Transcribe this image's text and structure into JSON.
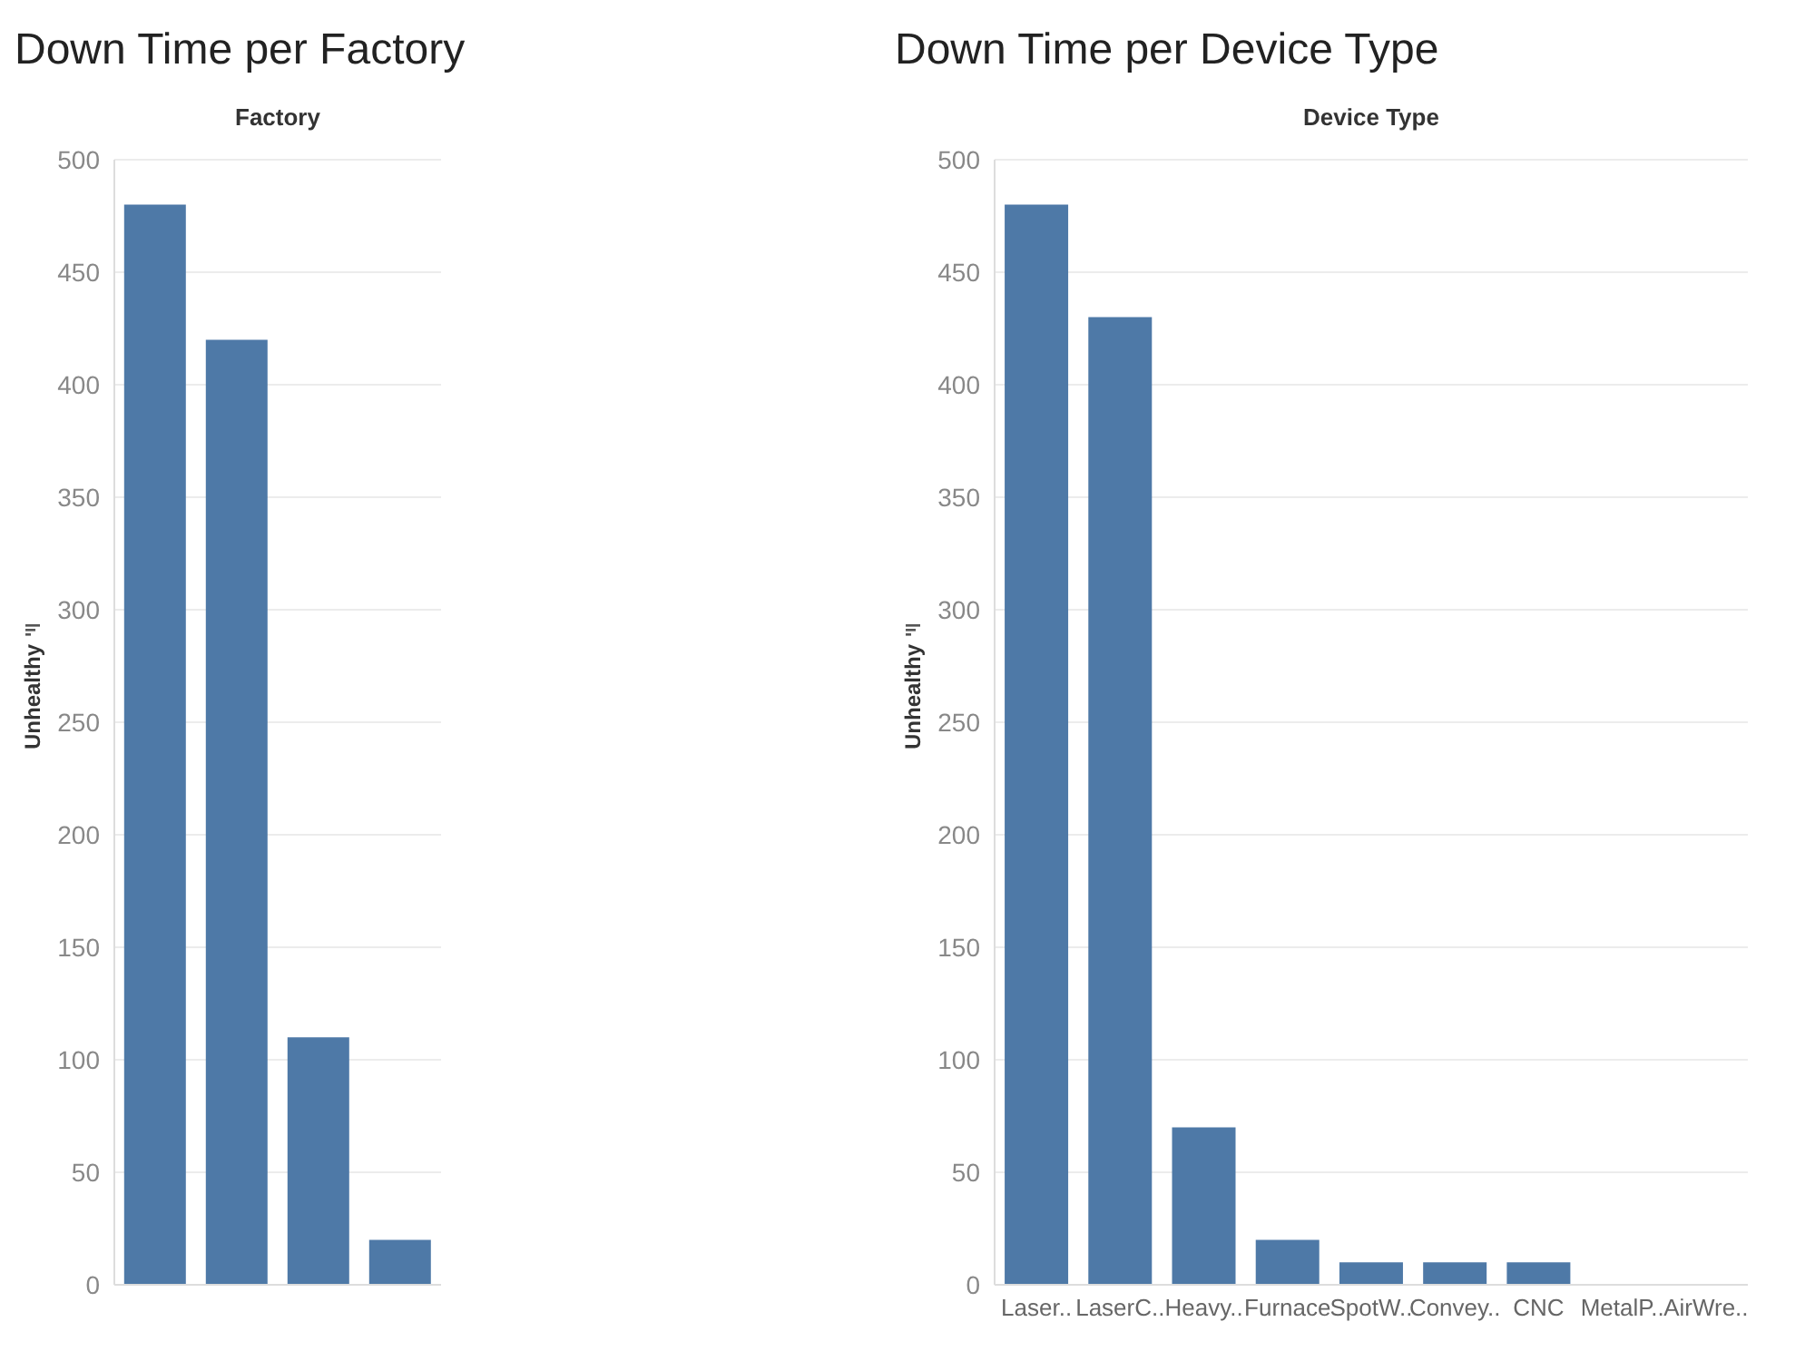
{
  "chart_data": [
    {
      "type": "bar",
      "title": "Down Time per Factory",
      "xlabel": "Factory",
      "ylabel": "Unhealthy",
      "categories": [
        null,
        null,
        null,
        null
      ],
      "values": [
        480,
        420,
        110,
        20
      ],
      "color": "#4e79a7",
      "ylim": [
        0,
        500
      ],
      "yticks": [
        0,
        50,
        100,
        150,
        200,
        250,
        300,
        350,
        400,
        450,
        500
      ],
      "grid": "y"
    },
    {
      "type": "bar",
      "title": "Down Time per Device Type",
      "xlabel": "Device Type",
      "ylabel": "Unhealthy",
      "categories": [
        "Laser..",
        "LaserC..",
        "Heavy..",
        "Furnace",
        "SpotW..",
        "Convey..",
        "CNC",
        "MetalP..",
        "AirWre.."
      ],
      "values": [
        480,
        430,
        70,
        20,
        10,
        10,
        10,
        0,
        0
      ],
      "color": "#4e79a7",
      "ylim": [
        0,
        500
      ],
      "yticks": [
        0,
        50,
        100,
        150,
        200,
        250,
        300,
        350,
        400,
        450,
        500
      ],
      "grid": "y"
    }
  ]
}
